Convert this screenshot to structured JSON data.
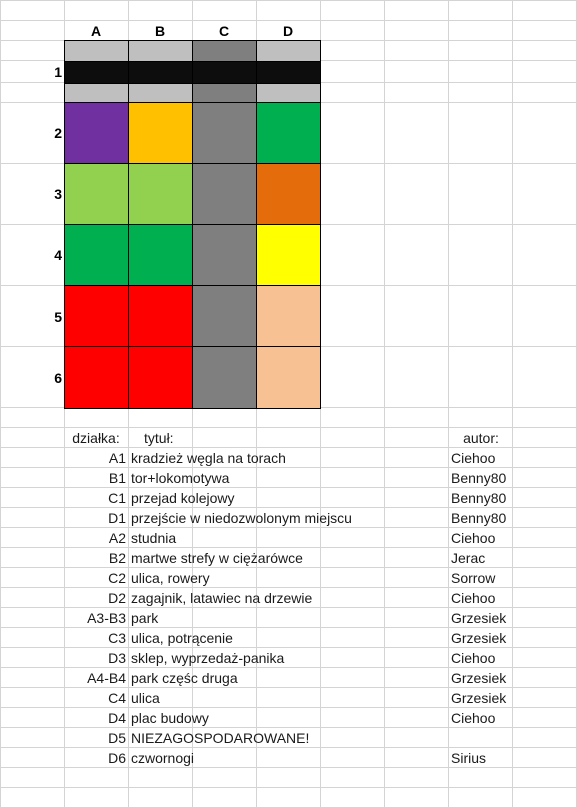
{
  "column_headers": [
    "A",
    "B",
    "C",
    "D"
  ],
  "row_headers": [
    "1",
    "2",
    "3",
    "4",
    "5",
    "6"
  ],
  "colors": {
    "light_gray": "#bfbfbf",
    "dark_gray": "#7f7f7f",
    "black": "#0d0d0d",
    "purple": "#7030a0",
    "gold": "#ffc000",
    "green": "#00b050",
    "light_green": "#92d050",
    "orange": "#e46c0a",
    "yellow": "#ffff00",
    "red": "#ff0000",
    "peach": "#f8c194"
  },
  "map_cells": [
    [
      "light_gray",
      "light_gray",
      "dark_gray",
      "light_gray"
    ],
    [
      "black",
      "black",
      "black",
      "black"
    ],
    [
      "light_gray",
      "light_gray",
      "dark_gray",
      "light_gray"
    ],
    [
      "purple",
      "gold",
      "dark_gray",
      "green"
    ],
    [
      "light_green",
      "light_green",
      "dark_gray",
      "orange"
    ],
    [
      "green",
      "green",
      "dark_gray",
      "yellow"
    ],
    [
      "red",
      "red",
      "dark_gray",
      "peach"
    ],
    [
      "red",
      "red",
      "dark_gray",
      "peach"
    ]
  ],
  "table": {
    "headers": {
      "plot": "działka:",
      "title": "tytuł:",
      "author": "autor:"
    },
    "rows": [
      {
        "plot": "A1",
        "title": "kradzież węgla na torach",
        "author": "Ciehoo"
      },
      {
        "plot": "B1",
        "title": "tor+lokomotywa",
        "author": "Benny80"
      },
      {
        "plot": "C1",
        "title": "przejad kolejowy",
        "author": "Benny80"
      },
      {
        "plot": "D1",
        "title": "przejście w niedozwolonym miejscu",
        "author": "Benny80"
      },
      {
        "plot": "A2",
        "title": "studnia",
        "author": "Ciehoo"
      },
      {
        "plot": "B2",
        "title": "martwe strefy w ciężarówce",
        "author": "Jerac"
      },
      {
        "plot": "C2",
        "title": "ulica, rowery",
        "author": "Sorrow"
      },
      {
        "plot": "D2",
        "title": "zagajnik, latawiec na drzewie",
        "author": "Ciehoo"
      },
      {
        "plot": "A3-B3",
        "title": "park",
        "author": "Grzesiek"
      },
      {
        "plot": "C3",
        "title": "ulica, potrącenie",
        "author": "Grzesiek"
      },
      {
        "plot": "D3",
        "title": "sklep, wyprzedaż-panika",
        "author": "Ciehoo"
      },
      {
        "plot": "A4-B4",
        "title": "park częśc druga",
        "author": "Grzesiek"
      },
      {
        "plot": "C4",
        "title": "ulica",
        "author": "Grzesiek"
      },
      {
        "plot": "D4",
        "title": "plac budowy",
        "author": "Ciehoo"
      },
      {
        "plot": "D5",
        "title": "NIEZAGOSPODAROWANE!",
        "author": ""
      },
      {
        "plot": "D6",
        "title": "czwornogi",
        "author": "Sirius"
      }
    ]
  }
}
